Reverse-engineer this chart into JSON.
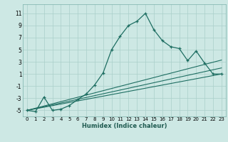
{
  "xlabel": "Humidex (Indice chaleur)",
  "bg_color": "#cde8e4",
  "grid_color": "#aacfca",
  "line_color": "#1e6e62",
  "xlim": [
    -0.5,
    23.5
  ],
  "ylim": [
    -6,
    12.5
  ],
  "xticks": [
    0,
    1,
    2,
    3,
    4,
    5,
    6,
    7,
    8,
    9,
    10,
    11,
    12,
    13,
    14,
    15,
    16,
    17,
    18,
    19,
    20,
    21,
    22,
    23
  ],
  "yticks": [
    -5,
    -3,
    -1,
    1,
    3,
    5,
    7,
    9,
    11
  ],
  "curve1_x": [
    0,
    1,
    2,
    3,
    4,
    5,
    6,
    7,
    8,
    9,
    10,
    11,
    12,
    13,
    14,
    15,
    16,
    17,
    18,
    19,
    20,
    21,
    22,
    23
  ],
  "curve1_y": [
    -5,
    -5.2,
    -2.8,
    -5,
    -4.8,
    -4.2,
    -3.2,
    -2.3,
    -0.8,
    1.2,
    5.0,
    7.2,
    9.0,
    9.7,
    11.0,
    8.3,
    6.5,
    5.5,
    5.2,
    3.2,
    4.8,
    2.8,
    1.0,
    1.0
  ],
  "line1_x": [
    0,
    23
  ],
  "line1_y": [
    -5,
    1.0
  ],
  "line2_x": [
    0,
    23
  ],
  "line2_y": [
    -5,
    2.0
  ],
  "line3_x": [
    0,
    23
  ],
  "line3_y": [
    -5,
    3.3
  ]
}
